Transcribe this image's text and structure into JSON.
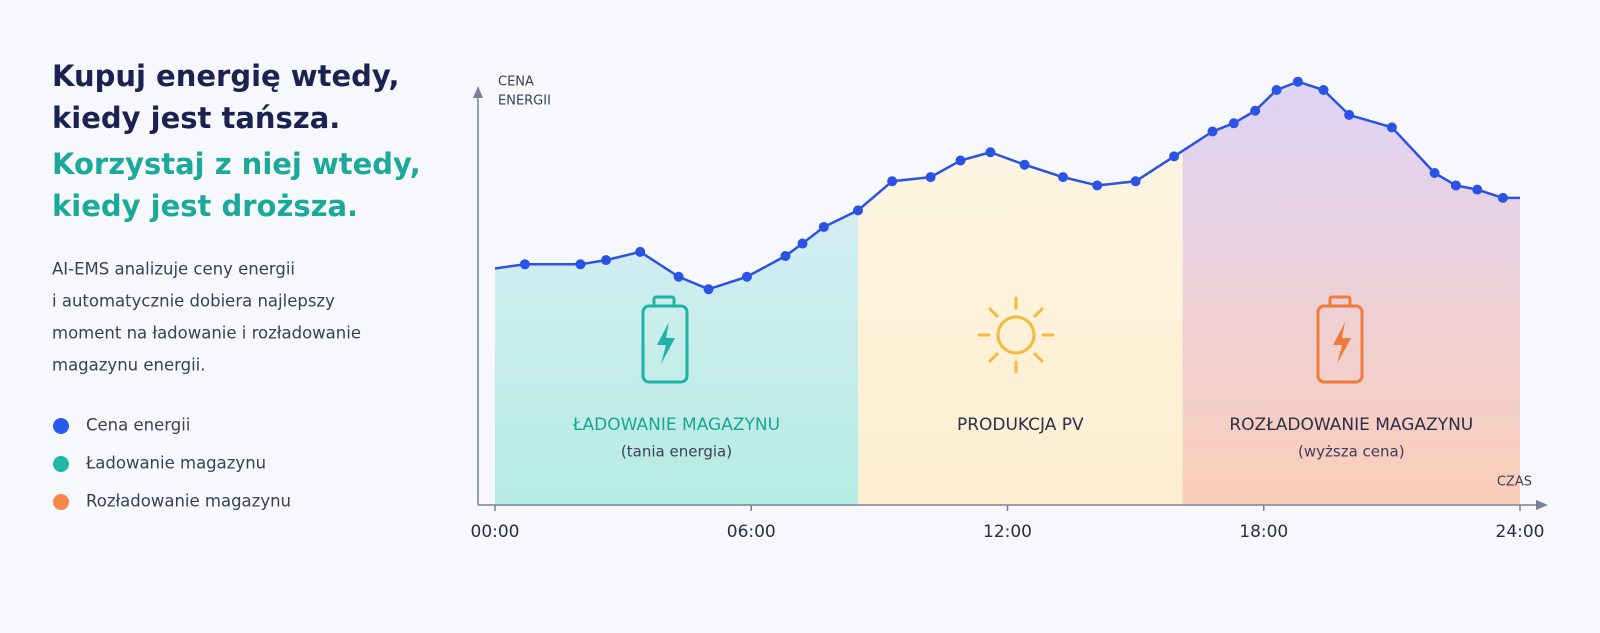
{
  "header": {
    "headline": [
      "Kupuj energię wtedy,",
      "kiedy jest tańsza."
    ],
    "headline_accent": [
      "Korzystaj z niej wtedy,",
      "kiedy jest droższa."
    ],
    "description": [
      "AI-EMS analizuje ceny energii",
      "i automatycznie dobiera najlepszy",
      "moment na ładowanie i rozładowanie",
      "magazynu energii."
    ]
  },
  "chart_data": {
    "type": "line",
    "y_label": [
      "CENA",
      "ENERGII"
    ],
    "x_label": "CZAS",
    "x": [
      0,
      0.7,
      2.0,
      2.6,
      3.4,
      4.3,
      5.0,
      5.9,
      6.8,
      7.2,
      7.7,
      8.5,
      9.3,
      10.2,
      10.9,
      11.6,
      12.4,
      13.3,
      14.1,
      15.0,
      15.9,
      16.8,
      17.3,
      17.8,
      18.3,
      18.8,
      19.4,
      20.0,
      21.0,
      22.0,
      22.5,
      23.0,
      23.6,
      24
    ],
    "series": [
      {
        "name": "Cena energii",
        "color": "#2a52e4",
        "values": [
          57,
          58,
          58,
          59,
          61,
          55,
          52,
          55,
          60,
          63,
          67,
          71,
          78,
          79,
          83,
          85,
          82,
          79,
          77,
          78,
          84,
          90,
          92,
          95,
          100,
          102,
          100,
          94,
          91,
          80,
          77,
          76,
          74,
          74
        ]
      }
    ],
    "xlim": [
      0,
      24
    ],
    "ylim": [
      0,
      100
    ],
    "xticks": [
      {
        "value": 0,
        "label": "00:00"
      },
      {
        "value": 6,
        "label": "06:00"
      },
      {
        "value": 12,
        "label": "12:00"
      },
      {
        "value": 18,
        "label": "18:00"
      },
      {
        "value": 24,
        "label": "24:00"
      }
    ],
    "zones": [
      {
        "label": "ŁADOWANIE MAGAZYNU",
        "sublabel": "(tania energia)",
        "start": 0,
        "end": 8.5,
        "color": "#b5ece2",
        "label_color": "#19a596"
      },
      {
        "label": "PRODUKCJA PV",
        "start": 8.5,
        "end": 16.1,
        "color": "#fdeed0",
        "label_color": "#2b2f45"
      },
      {
        "label": "ROZŁADOWANIE MAGAZYNU",
        "sublabel": "(wyższa cena)",
        "start": 16.1,
        "end": 24,
        "color": "#fbcdb8",
        "label_color": "#2b2f45"
      }
    ],
    "legend": [
      {
        "name": "Cena energii",
        "color": "#2a5bf0"
      },
      {
        "name": "Ładowanie magazynu",
        "color": "#1fb8a8"
      },
      {
        "name": "Rozładowanie magazynu",
        "color": "#f5874a"
      }
    ]
  }
}
